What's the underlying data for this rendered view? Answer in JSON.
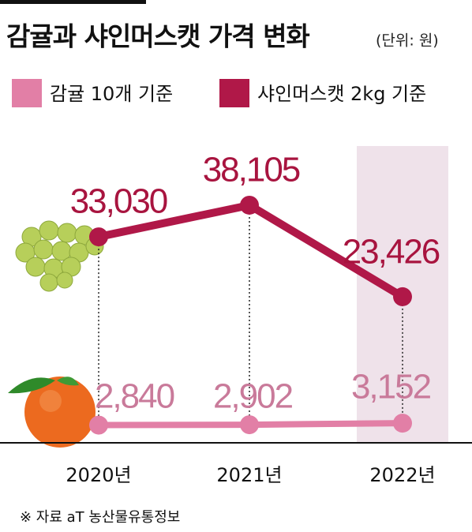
{
  "chart_data": {
    "type": "line",
    "title": "감귤과 샤인머스캣 가격 변화",
    "subtitle": "(단위: 원)",
    "categories": [
      "2020년",
      "2021년",
      "2022년"
    ],
    "series": [
      {
        "name": "감귤 10개 기준",
        "color": "#e27fa6",
        "values": [
          2840,
          2902,
          3152
        ],
        "value_labels": [
          "2,840",
          "2,902",
          "3,152"
        ]
      },
      {
        "name": "샤인머스캣 2kg 기준",
        "color": "#b01848",
        "values": [
          33030,
          38105,
          23426
        ],
        "value_labels": [
          "33,030",
          "38,105",
          "23,426"
        ]
      }
    ],
    "source": "※ 자료 aT 농산물유통정보"
  }
}
